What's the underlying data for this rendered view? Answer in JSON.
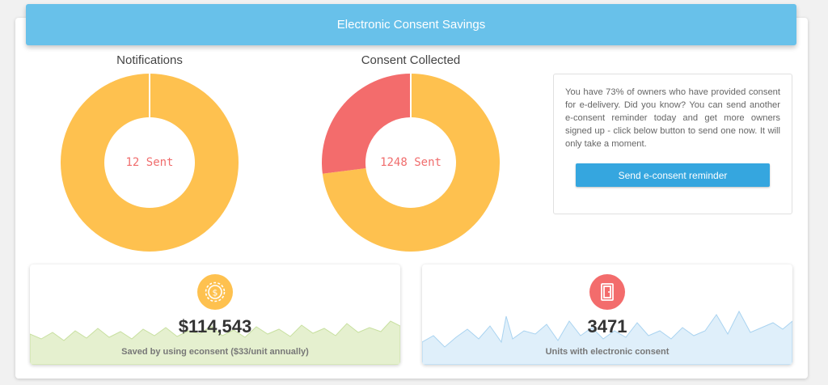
{
  "header": {
    "title": "Electronic Consent Savings"
  },
  "notifications": {
    "title": "Notifications",
    "center_label": "12 Sent",
    "segments": [
      {
        "value": 100,
        "color": "#fec14f"
      }
    ]
  },
  "consent": {
    "title": "Consent Collected",
    "center_label": "1248 Sent",
    "segments": [
      {
        "value": 73,
        "color": "#fec14f"
      },
      {
        "value": 27,
        "color": "#f36c6c"
      }
    ]
  },
  "info": {
    "text": "You have 73% of owners who have provided consent for e-delivery. Did you know? You can send another e-consent reminder today and get more owners signed up - click below button to send one now. It will only take a moment.",
    "button_label": "Send e-consent reminder"
  },
  "savings": {
    "value": "$114,543",
    "caption": "Saved by using econsent ($33/unit annually)",
    "icon": "money-gear-icon",
    "icon_bg": "#fec14f",
    "spark_fill": "#e5f0cf",
    "spark_stroke": "#c8e0a0"
  },
  "units": {
    "value": "3471",
    "caption": "Units with electronic consent",
    "icon": "door-icon",
    "icon_bg": "#f36c6c",
    "spark_fill": "#dfeffa",
    "spark_stroke": "#a9d3f0"
  },
  "colors": {
    "header_bg": "#68c1ea",
    "button_bg": "#35a6df",
    "label_red": "#f06d6d"
  }
}
